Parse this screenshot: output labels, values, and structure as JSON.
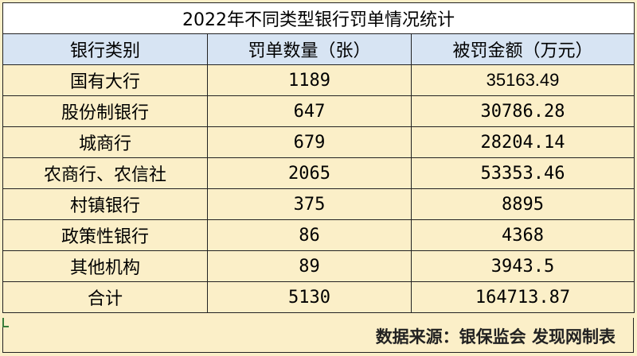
{
  "table": {
    "title": "2022年不同类型银行罚单情况统计",
    "headers": [
      "银行类别",
      "罚单数量（张）",
      "被罚金额（万元）"
    ],
    "rows": [
      {
        "category": "国有大行",
        "count": "1189",
        "amount": "35163.49"
      },
      {
        "category": "股份制银行",
        "count": "647",
        "amount": "30786.28"
      },
      {
        "category": "城商行",
        "count": "679",
        "amount": "28204.14"
      },
      {
        "category": "农商行、农信社",
        "count": "2065",
        "amount": "53353.46"
      },
      {
        "category": "村镇银行",
        "count": "375",
        "amount": "8895"
      },
      {
        "category": "政策性银行",
        "count": "86",
        "amount": "4368"
      },
      {
        "category": "其他机构",
        "count": "89",
        "amount": "3943.5"
      },
      {
        "category": "合计",
        "count": "5130",
        "amount": "164713.87"
      }
    ],
    "source_note": "数据来源：银保监会 发现网制表"
  },
  "colors": {
    "header_bg": "#d7e4f3",
    "body_bg": "#fbefc8",
    "title_bg": "#ffffff"
  }
}
